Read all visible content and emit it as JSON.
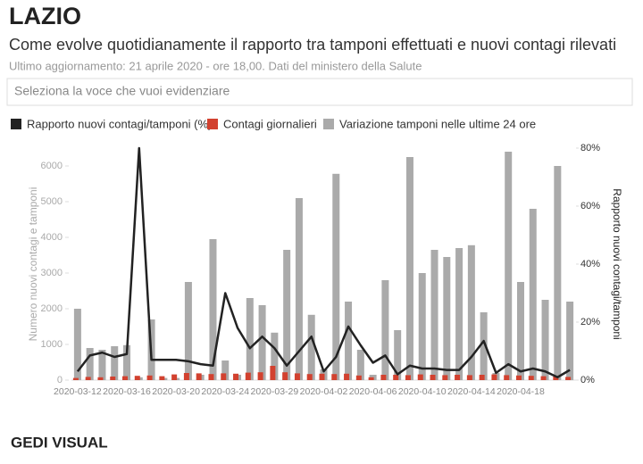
{
  "header": {
    "title": "LAZIO",
    "subtitle": "Come evolve quotidianamente il rapporto tra tamponi effettuati e nuovi contagi rilevati",
    "update": "Ultimo aggiornamento: 21 aprile 2020 - ore 18,00. Dati del ministero della Salute",
    "dropdown": "Seleziona la voce che vuoi evidenziare"
  },
  "footer": {
    "logo": "GEDI VISUAL"
  },
  "chart_data": {
    "type": "combo",
    "categories": [
      "2020-03-12",
      null,
      null,
      null,
      "2020-03-16",
      null,
      null,
      null,
      "2020-03-20",
      null,
      null,
      null,
      "2020-03-24",
      null,
      null,
      null,
      "2020-03-29",
      null,
      null,
      null,
      "2020-04-02",
      null,
      null,
      null,
      "2020-04-06",
      null,
      null,
      null,
      "2020-04-10",
      null,
      null,
      null,
      "2020-04-14",
      null,
      null,
      null,
      "2020-04-18",
      null,
      null,
      null,
      null
    ],
    "series": [
      {
        "name": "Rapporto nuovi contagi/tamponi (%)",
        "type": "line",
        "axis": "y2",
        "color": "#222222",
        "values": [
          3,
          8.5,
          9.5,
          8,
          9,
          80,
          7,
          7,
          7,
          6.5,
          5.5,
          5,
          30,
          18,
          11,
          15,
          11,
          5,
          10,
          15,
          3,
          8,
          18.5,
          12,
          6,
          8.5,
          2,
          5,
          4,
          4,
          3.5,
          3.5,
          8,
          13.5,
          2.5,
          5.5,
          3,
          4,
          3,
          1,
          3.5
        ]
      },
      {
        "name": "Contagi giornalieri",
        "type": "bar",
        "color": "#d2412f",
        "values": [
          60,
          90,
          80,
          100,
          110,
          120,
          130,
          110,
          160,
          200,
          190,
          170,
          190,
          180,
          210,
          220,
          400,
          220,
          190,
          170,
          180,
          170,
          180,
          130,
          80,
          150,
          150,
          140,
          160,
          150,
          140,
          150,
          140,
          150,
          160,
          140,
          130,
          120,
          110,
          100,
          90
        ]
      },
      {
        "name": "Variazione tamponi nelle ultime 24 ore",
        "type": "bar",
        "color": "#aaaaaa",
        "values": [
          2000,
          900,
          850,
          950,
          980,
          80,
          1700,
          60,
          60,
          2750,
          150,
          3950,
          550,
          150,
          2300,
          2100,
          1330,
          3650,
          5100,
          1830,
          300,
          5780,
          2200,
          850,
          150,
          2800,
          1400,
          6250,
          3000,
          3650,
          3450,
          3700,
          3780,
          1900,
          200,
          6400,
          2750,
          4800,
          2250,
          6000,
          2200
        ]
      }
    ],
    "ylabel": "Numero nuovi contagi e tamponi",
    "y2label": "Rapporto nuovi contagi/tamponi",
    "ylim": [
      0,
      6500
    ],
    "yticks": [
      0,
      1000,
      2000,
      3000,
      4000,
      5000,
      6000
    ],
    "y2lim": [
      0,
      80
    ],
    "y2ticks": [
      {
        "value": 0,
        "label": "0%"
      },
      {
        "value": 20,
        "label": "20%"
      },
      {
        "value": 40,
        "label": "40%"
      },
      {
        "value": 60,
        "label": "60%"
      },
      {
        "value": 80,
        "label": "80%"
      }
    ]
  }
}
